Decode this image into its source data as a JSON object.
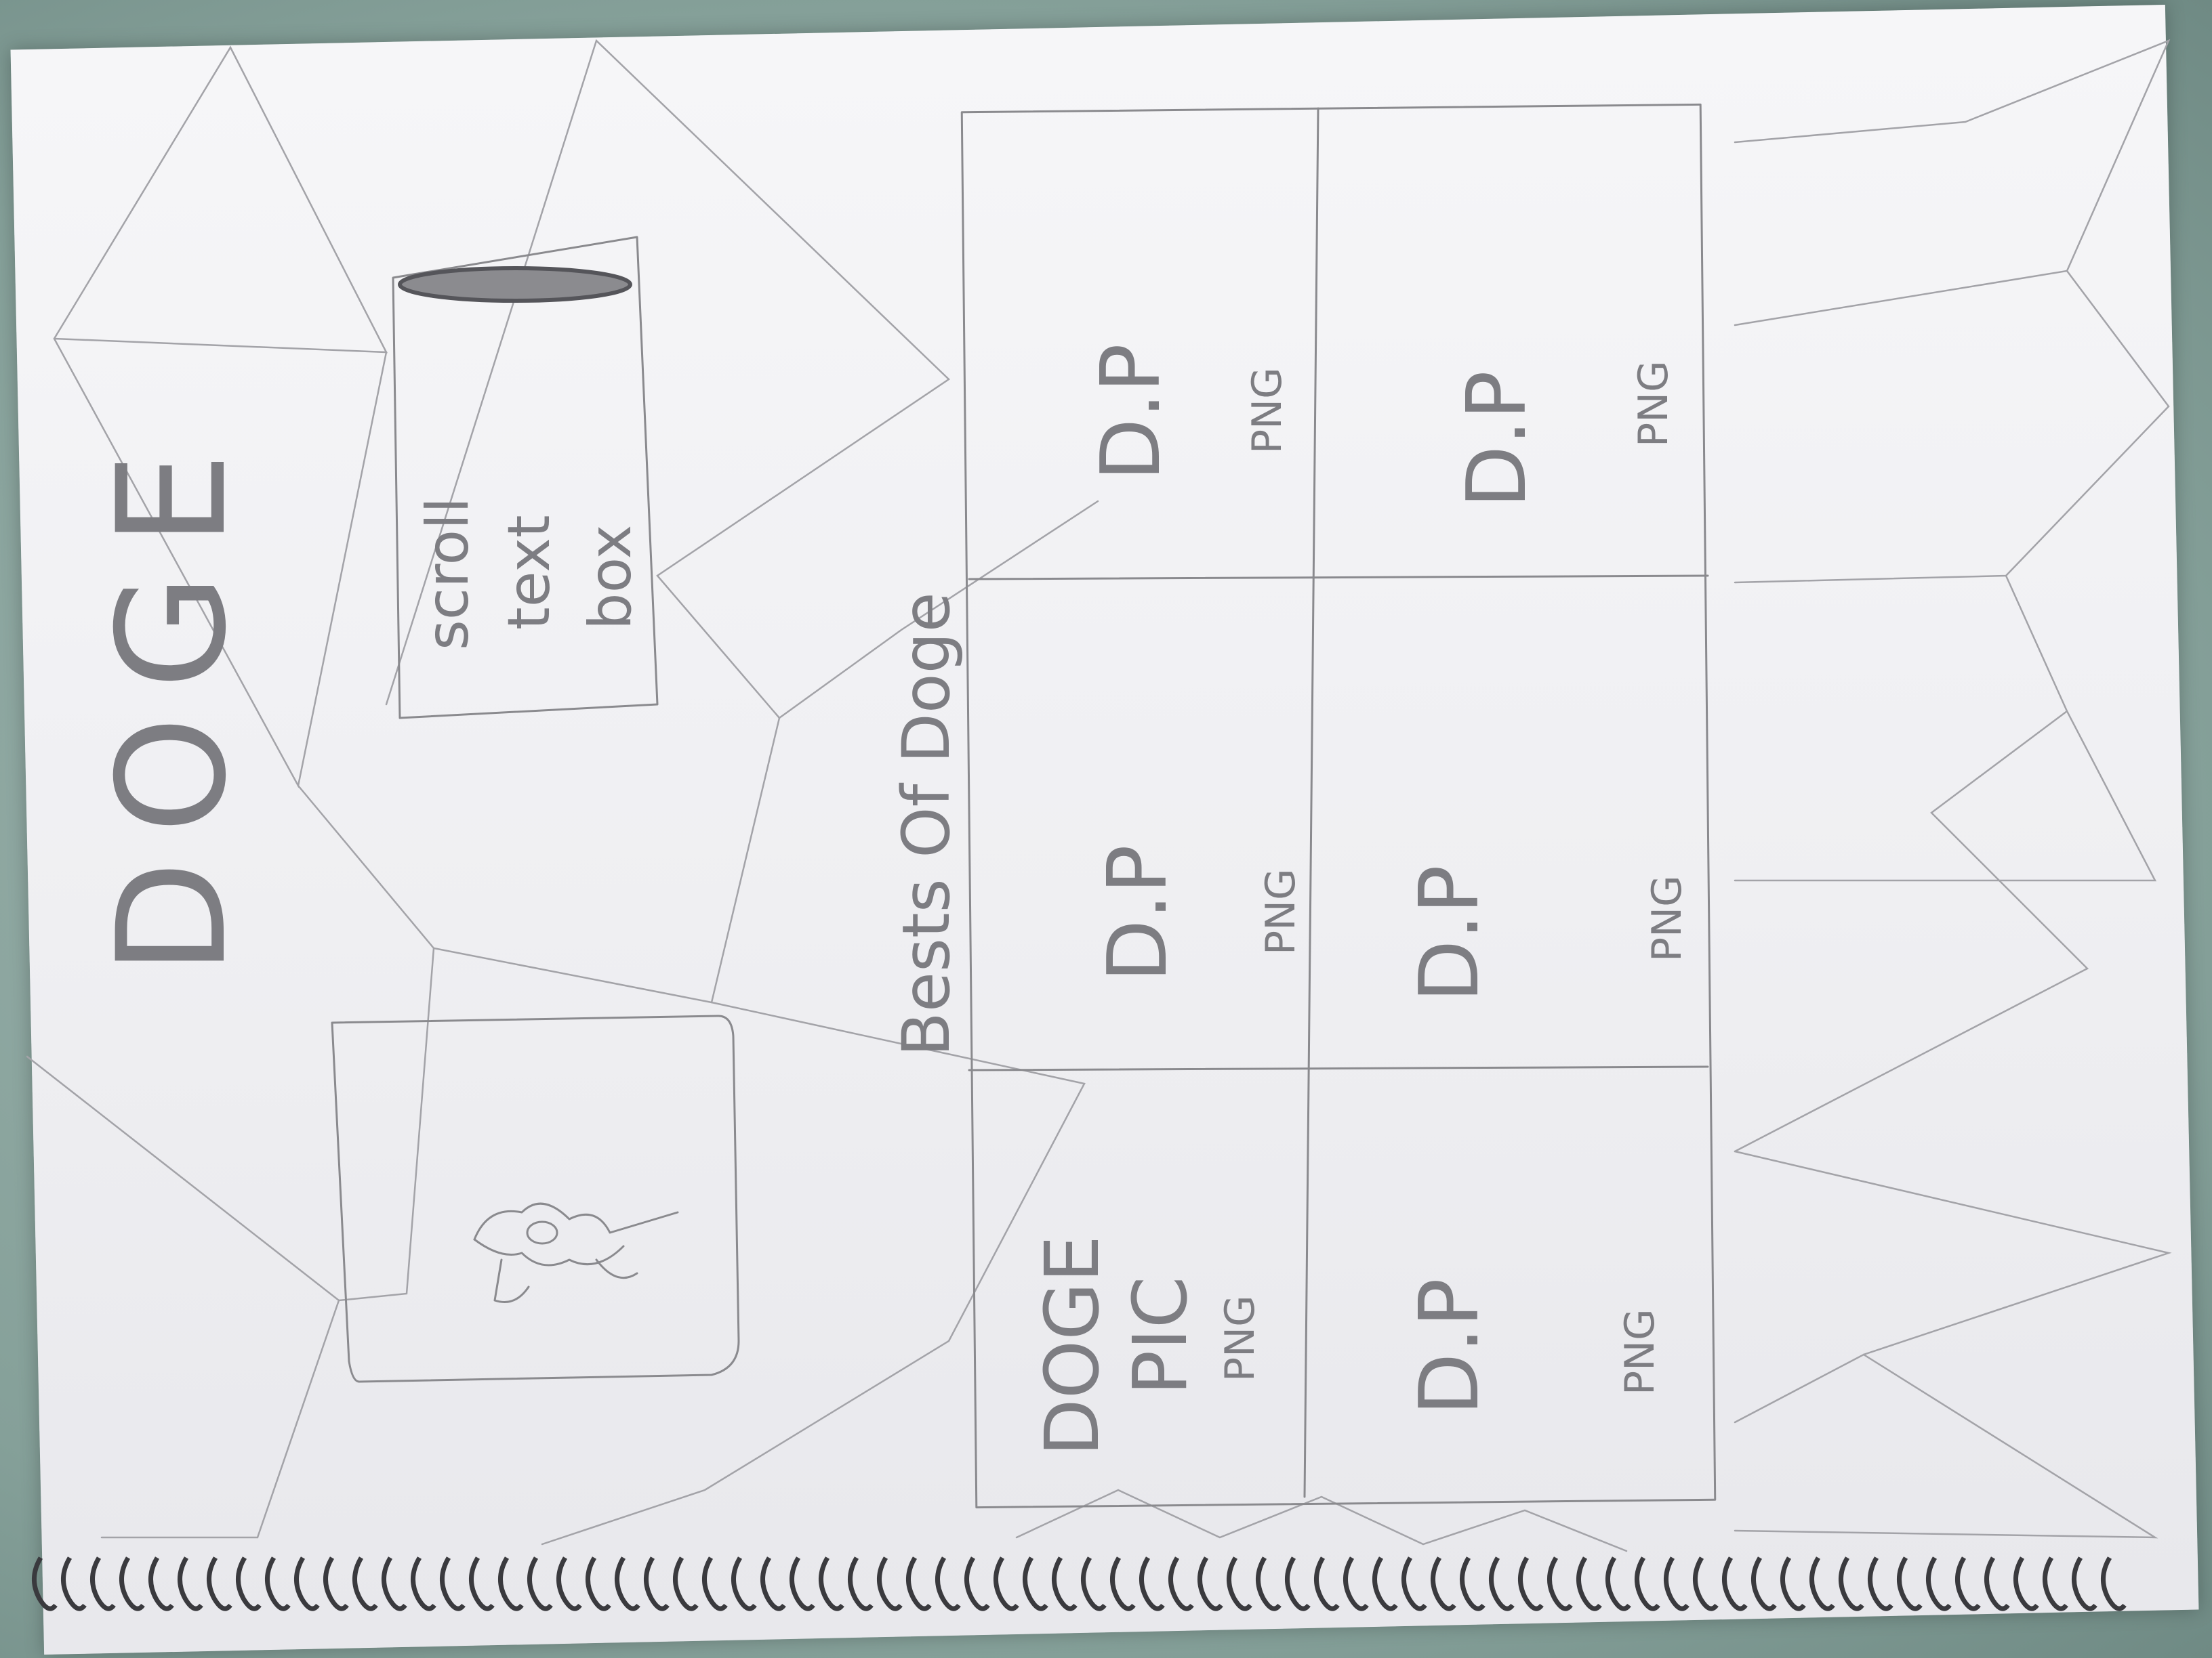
{
  "title": "DOGE",
  "scroll_box": {
    "line1": "scroll",
    "line2": "text",
    "line3": "box"
  },
  "gallery": {
    "heading": "Bests Of Doge",
    "cells": [
      {
        "label": "DOGE",
        "label2": "PIC",
        "format": "PNG"
      },
      {
        "label": "D.P",
        "label2": "",
        "format": "PNG"
      },
      {
        "label": "D.P",
        "label2": "",
        "format": "PNG"
      },
      {
        "label": "D.P",
        "label2": "",
        "format": "PNG"
      },
      {
        "label": "D.P",
        "label2": "",
        "format": "PNG"
      },
      {
        "label": "D.P",
        "label2": "",
        "format": "PNG"
      }
    ]
  },
  "colors": {
    "paper": "#f1f1f4",
    "pencil": "#8a8a8e",
    "background": "#8fa8a2",
    "binding": "#3a3a3e"
  }
}
